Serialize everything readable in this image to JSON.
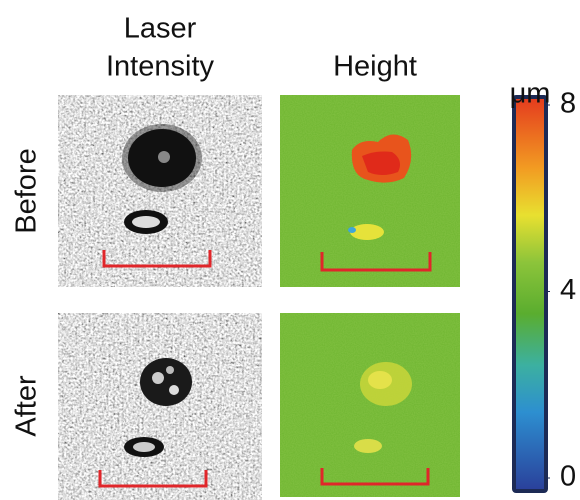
{
  "columns": [
    [
      "Laser",
      "Intensity"
    ],
    [
      "Height"
    ]
  ],
  "rows": [
    "Before",
    "After"
  ],
  "colorbar": {
    "unit": "μm",
    "lim": [
      0,
      8
    ],
    "ticks": [
      8,
      4,
      0
    ]
  }
}
